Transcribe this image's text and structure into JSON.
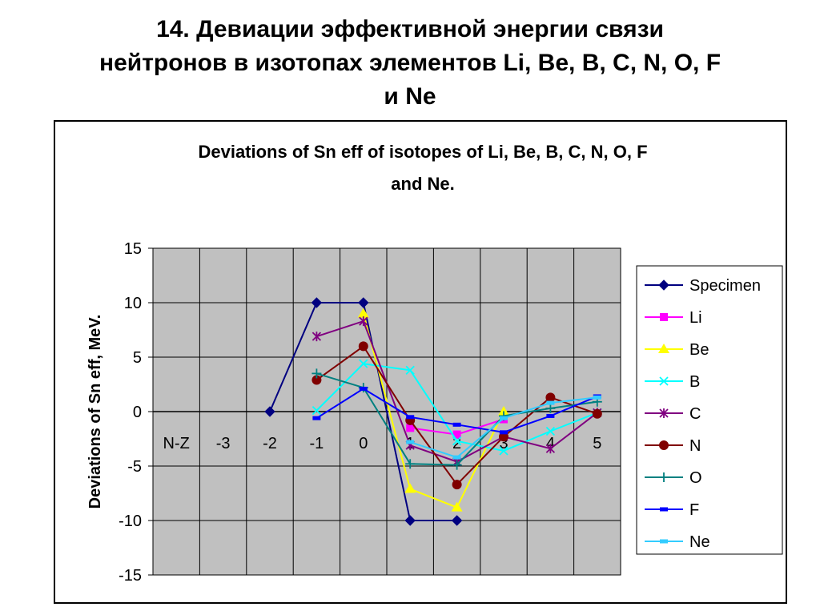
{
  "slide": {
    "title_lines": [
      "14. Девиации эффективной энергии связи",
      "нейтронов в изотопах элементов Li, Be, B, C, N, O, F",
      "и Ne"
    ]
  },
  "chart_data": {
    "type": "line",
    "title_lines": [
      "Deviations of Sn eff of isotopes of Li, Be, B, C, N, O, F",
      "and Ne."
    ],
    "xlabel": "N-Z",
    "ylabel": "Deviations of Sn eff, MeV.",
    "x_categories": [
      "N-Z",
      "-3",
      "-2",
      "-1",
      "0",
      "1",
      "2",
      "3",
      "4",
      "5"
    ],
    "y_ticks": [
      "15",
      "10",
      "5",
      "0",
      "-5",
      "-10",
      "-15"
    ],
    "ylim": [
      -15,
      15
    ],
    "grid": true,
    "plot_background": "#c0c0c0",
    "legend_position": "right",
    "series": [
      {
        "name": "Specimen",
        "color": "#000080",
        "marker": "diamond",
        "points": [
          [
            -2,
            0
          ],
          [
            -1,
            10
          ],
          [
            0,
            10
          ],
          [
            1,
            -10
          ],
          [
            2,
            -10
          ]
        ]
      },
      {
        "name": "Li",
        "color": "#ff00ff",
        "marker": "square",
        "points": [
          [
            1,
            -1.5
          ],
          [
            2,
            -2.1
          ],
          [
            3,
            -0.7
          ]
        ]
      },
      {
        "name": "Be",
        "color": "#ffff00",
        "marker": "triangle",
        "points": [
          [
            0,
            9
          ],
          [
            1,
            -7.1
          ],
          [
            2,
            -8.8
          ],
          [
            3,
            0
          ]
        ]
      },
      {
        "name": "B",
        "color": "#00ffff",
        "marker": "x",
        "points": [
          [
            -1,
            0.1
          ],
          [
            0,
            4.4
          ],
          [
            1,
            3.8
          ],
          [
            2,
            -2.7
          ],
          [
            3,
            -3.6
          ],
          [
            4,
            -1.8
          ],
          [
            5,
            -0.1
          ]
        ]
      },
      {
        "name": "C",
        "color": "#800080",
        "marker": "star",
        "points": [
          [
            -1,
            6.9
          ],
          [
            0,
            8.3
          ],
          [
            1,
            -3.1
          ],
          [
            2,
            -4.6
          ],
          [
            3,
            -2.3
          ],
          [
            4,
            -3.4
          ],
          [
            5,
            -0.1
          ]
        ]
      },
      {
        "name": "N",
        "color": "#800000",
        "marker": "circle",
        "points": [
          [
            -1,
            2.9
          ],
          [
            0,
            6
          ],
          [
            1,
            -0.8
          ],
          [
            2,
            -6.7
          ],
          [
            3,
            -2.3
          ],
          [
            4,
            1.3
          ],
          [
            5,
            -0.2
          ]
        ]
      },
      {
        "name": "O",
        "color": "#008080",
        "marker": "plus",
        "points": [
          [
            -1,
            3.5
          ],
          [
            0,
            2.2
          ],
          [
            1,
            -4.8
          ],
          [
            2,
            -4.9
          ],
          [
            3,
            -0.4
          ],
          [
            4,
            0.3
          ],
          [
            5,
            0.9
          ]
        ]
      },
      {
        "name": "F",
        "color": "#0000ff",
        "marker": "dash",
        "points": [
          [
            -1,
            -0.6
          ],
          [
            0,
            2.1
          ],
          [
            1,
            -0.5
          ],
          [
            2,
            -1.2
          ],
          [
            3,
            -1.9
          ],
          [
            4,
            -0.4
          ],
          [
            5,
            1.4
          ]
        ]
      },
      {
        "name": "Ne",
        "color": "#33ccff",
        "marker": "dash",
        "points": [
          [
            1,
            -2.8
          ],
          [
            2,
            -4.2
          ],
          [
            3,
            -0.6
          ],
          [
            4,
            0.8
          ],
          [
            5,
            1.3
          ]
        ]
      }
    ]
  }
}
